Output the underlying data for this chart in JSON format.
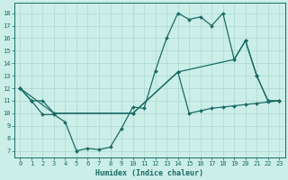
{
  "xlabel": "Humidex (Indice chaleur)",
  "xlim": [
    -0.5,
    23.5
  ],
  "ylim": [
    6.5,
    18.8
  ],
  "yticks": [
    7,
    8,
    9,
    10,
    11,
    12,
    13,
    14,
    15,
    16,
    17,
    18
  ],
  "xticks": [
    0,
    1,
    2,
    3,
    4,
    5,
    6,
    7,
    8,
    9,
    10,
    11,
    12,
    13,
    14,
    15,
    16,
    17,
    18,
    19,
    20,
    21,
    22,
    23
  ],
  "bg_color": "#cceee8",
  "grid_color": "#aad8d0",
  "line_color": "#1a6b65",
  "line1_x": [
    0,
    1,
    2,
    3,
    4,
    5,
    6,
    7,
    8,
    9,
    10,
    11,
    12,
    13,
    14,
    15,
    16,
    17,
    18,
    19,
    20,
    21,
    22,
    23
  ],
  "line1_y": [
    12,
    11,
    9.9,
    9.9,
    9.3,
    7.0,
    7.2,
    7.1,
    7.3,
    8.8,
    10.5,
    10.4,
    13.4,
    16.0,
    18.0,
    17.5,
    17.7,
    17.0,
    18.0,
    14.3,
    15.8,
    13.0,
    11.0,
    11.0
  ],
  "line2_x": [
    0,
    1,
    2,
    3,
    10,
    14,
    19,
    20,
    21,
    22,
    23
  ],
  "line2_y": [
    12,
    11,
    11,
    10,
    10,
    13.3,
    14.3,
    15.8,
    13.0,
    11.0,
    11.0
  ],
  "line3_x": [
    0,
    3,
    10,
    14,
    15,
    16,
    17,
    18,
    19,
    20,
    21,
    22,
    23
  ],
  "line3_y": [
    12,
    10,
    10.0,
    13.3,
    10.0,
    10.2,
    10.4,
    10.5,
    10.6,
    10.7,
    10.8,
    10.9,
    11.0
  ]
}
